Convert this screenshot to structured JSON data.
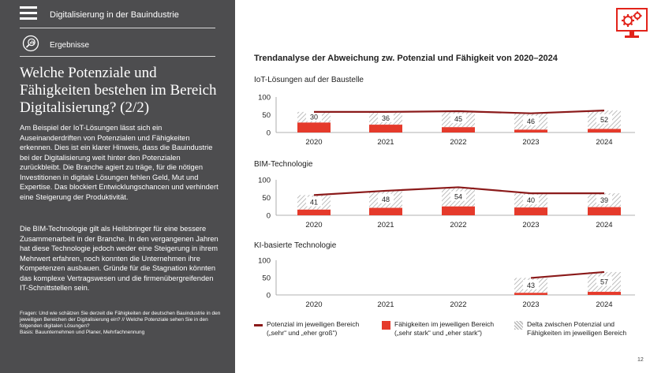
{
  "header": {
    "app_title": "Digitalisierung in der Bauindustrie",
    "section_label": "Ergebnisse"
  },
  "sidebar": {
    "heading": "Welche Potenziale und Fähigkeiten bestehen im Bereich Digitalisierung? (2/2)",
    "paragraph1": "Am Beispiel der IoT-Lösungen lässt sich ein Auseinanderdriften von Potenzialen und Fähigkeiten erkennen. Dies ist ein klarer Hinweis, dass die Bauindustrie bei der Digitalisierung weit hinter den Potenzialen zurückbleibt. Die Branche agiert zu träge, für die nötigen Investitionen in digitale Lösungen fehlen Geld, Mut und Expertise. Das blockiert Entwicklungschancen und verhindert eine Steigerung der Produktivität.",
    "paragraph2": "Die BIM-Technologie gilt als Heilsbringer für eine bessere Zusammenarbeit in der Branche. In den vergangenen Jahren hat diese Technologie jedoch weder eine Steigerung in ihrem Mehrwert erfahren, noch konnten die Unternehmen ihre Kompetenzen ausbauen. Gründe für die Stagnation könnten das komplexe Vertragswesen und die firmenübergreifenden IT-Schnittstellen sein.",
    "footnote1": "Fragen: Und wie schätzen Sie derzeit die Fähigkeiten der deutschen Bauindustrie in den jeweiligen Bereichen der Digitalisierung ein? // Welche Potenziale sehen Sie in den folgenden digitalen Lösungen?",
    "footnote2": "Basis: Bauunternehmen und Planer, Mehrfachnennung"
  },
  "colors": {
    "panel": "#4d4d4f",
    "potential_line": "#8b1a1a",
    "ability_bar": "#e53a2b",
    "icon_red": "#e2231a"
  },
  "icons": {
    "menu": "hamburger-menu-icon",
    "section": "magnifier-chart-icon",
    "brand": "monitor-gears-icon"
  },
  "chart_title": "Trendanalyse der Abweichung zw. Potenzial und Fähigkeit von 2020–2024",
  "chart_data": [
    {
      "type": "bar",
      "title": "IoT-Lösungen auf der Baustelle",
      "categories": [
        "2020",
        "2021",
        "2022",
        "2023",
        "2024"
      ],
      "ylim": [
        0,
        100
      ],
      "yticks": [
        0,
        50,
        100
      ],
      "series": [
        {
          "name": "Potenzial im jeweiligen Bereich („sehr“ und „eher groß“)",
          "kind": "line",
          "values": [
            58,
            58,
            60,
            54,
            62
          ]
        },
        {
          "name": "Fähigkeiten im jeweiligen Bereich („sehr stark“ und „eher stark“)",
          "kind": "bar",
          "values": [
            28,
            22,
            15,
            8,
            10
          ]
        },
        {
          "name": "Delta zwischen Potenzial und Fähigkeiten im jeweiligen Bereich",
          "kind": "delta",
          "values": [
            30,
            36,
            45,
            46,
            52
          ]
        }
      ]
    },
    {
      "type": "bar",
      "title": "BIM-Technologie",
      "categories": [
        "2020",
        "2021",
        "2022",
        "2023",
        "2024"
      ],
      "ylim": [
        0,
        100
      ],
      "yticks": [
        0,
        50,
        100
      ],
      "series": [
        {
          "name": "Potenzial im jeweiligen Bereich („sehr“ und „eher groß“)",
          "kind": "line",
          "values": [
            57,
            69,
            79,
            62,
            62
          ]
        },
        {
          "name": "Fähigkeiten im jeweiligen Bereich („sehr stark“ und „eher stark“)",
          "kind": "bar",
          "values": [
            16,
            21,
            25,
            22,
            23
          ]
        },
        {
          "name": "Delta zwischen Potenzial und Fähigkeiten im jeweiligen Bereich",
          "kind": "delta",
          "values": [
            41,
            48,
            54,
            40,
            39
          ]
        }
      ]
    },
    {
      "type": "bar",
      "title": "KI-basierte Technologie",
      "categories": [
        "2020",
        "2021",
        "2022",
        "2023",
        "2024"
      ],
      "ylim": [
        0,
        100
      ],
      "yticks": [
        0,
        50,
        100
      ],
      "series": [
        {
          "name": "Potenzial im jeweiligen Bereich („sehr“ und „eher groß“)",
          "kind": "line",
          "values": [
            null,
            null,
            null,
            49,
            66
          ]
        },
        {
          "name": "Fähigkeiten im jeweiligen Bereich („sehr stark“ und „eher stark“)",
          "kind": "bar",
          "values": [
            null,
            null,
            null,
            6,
            9
          ]
        },
        {
          "name": "Delta zwischen Potenzial und Fähigkeiten im jeweiligen Bereich",
          "kind": "delta",
          "values": [
            null,
            null,
            null,
            43,
            57
          ]
        }
      ]
    }
  ],
  "legend": {
    "potential_line1": "Potenzial im jeweiligen Bereich",
    "potential_line2": "(„sehr“ und „eher groß“)",
    "ability_line1": "Fähigkeiten im jeweiligen Bereich",
    "ability_line2": "(„sehr stark“ und „eher stark“)",
    "delta_line1": "Delta zwischen Potenzial und",
    "delta_line2": "Fähigkeiten im jeweiligen Bereich"
  },
  "page_number": "12"
}
